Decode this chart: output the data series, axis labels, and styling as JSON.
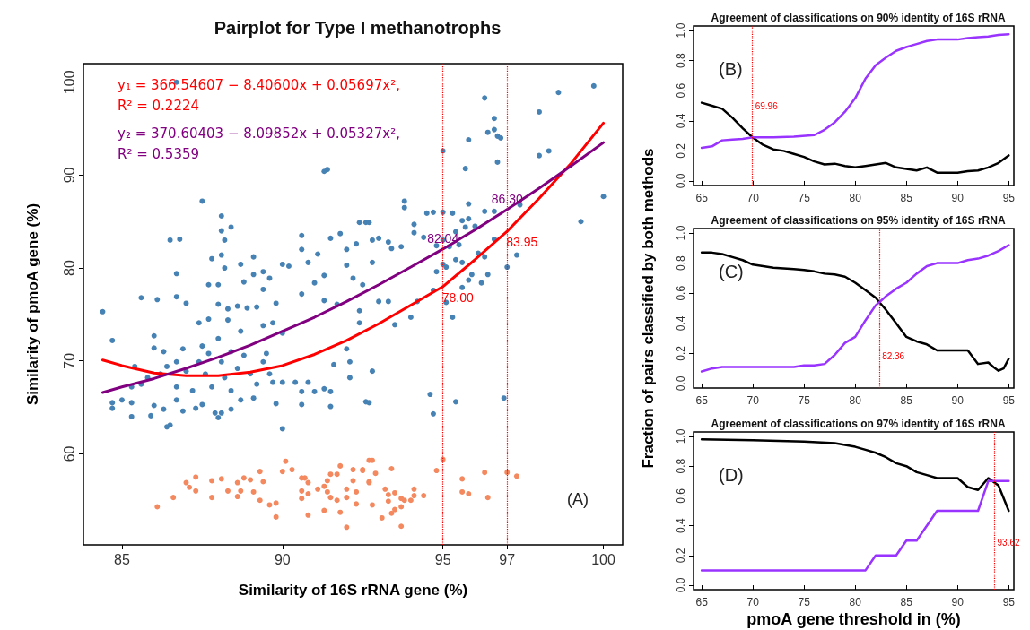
{
  "chart_data": [
    {
      "type": "scatter",
      "title": "Pairplot for Type I methanotrophs",
      "xlabel": "Similarity of 16S rRNA gene (%)",
      "ylabel": "Similarity of pmoA gene (%)",
      "xlim": [
        83.8,
        100.6
      ],
      "ylim": [
        50.2,
        102
      ],
      "xticks": [
        85,
        90,
        95,
        97,
        100
      ],
      "yticks": [
        60,
        70,
        80,
        90,
        100
      ],
      "legend": "top left",
      "annotations": [
        "(A)"
      ],
      "ref_lines": [
        {
          "axis": "x",
          "value": 95,
          "color": "#ff0000",
          "line_style": "dotted"
        },
        {
          "axis": "x",
          "value": 97,
          "color": "#ff0000",
          "line_style": "dotted"
        }
      ],
      "series": [
        {
          "marker": "circle",
          "color": "#4682b4",
          "x": [
            86.7,
            84.4,
            84.7,
            85.6,
            86.1,
            86.7,
            87.0,
            86.5,
            86.8,
            86.7,
            87.5,
            88.1,
            88.1,
            88.4,
            88.2,
            88.1,
            87.8,
            88.2,
            88.7,
            89.1,
            89.1,
            89.4,
            89.6,
            87.7,
            88.0,
            88.8,
            89.4,
            88.0,
            88.3,
            88.6,
            88.9,
            89.2,
            89.8,
            87.4,
            87.7,
            88.3,
            88.7,
            89.4,
            89.7,
            90.0,
            88.0,
            87.5,
            86.0,
            86.0,
            86.3,
            86.9,
            86.4,
            85.4,
            85.8,
            85.3,
            85.0,
            84.7,
            84.7,
            85.3,
            85.3,
            85.9,
            86.0,
            86.4,
            86.5,
            86.3,
            86.7,
            86.9,
            87.3,
            87.5,
            87.9,
            88.0,
            88.1,
            88.4,
            88.7,
            89.1,
            89.8,
            90.0,
            90.0,
            89.7,
            90.4,
            90.8,
            90.6,
            91.0,
            91.3,
            91.5,
            91.5,
            90.6,
            87.0,
            87.4,
            87.6,
            87.8,
            88.1,
            88.2,
            88.4,
            88.6,
            88.8,
            89.0,
            89.2,
            89.4,
            89.6,
            89.5,
            87.2,
            86.7,
            86.2,
            85.6,
            88.4,
            87.7,
            86.7,
            90.0,
            90.2,
            90.6,
            90.6,
            90.8,
            91.1,
            91.3,
            91.5,
            91.8,
            92.0,
            92.4,
            92.6,
            92.3,
            92.8,
            92.0,
            92.2,
            92.5,
            92.8,
            90.6,
            91.3,
            91.7,
            92.0,
            92.1,
            92.1,
            92.4,
            92.4,
            91.6,
            92.8,
            92.6,
            91.3,
            91.4,
            91.0,
            93.8,
            93.8,
            92.7,
            93.0,
            93.3,
            93.4,
            93.7,
            94.1,
            94.5,
            94.7,
            95.0,
            95.3,
            95.6,
            95.8,
            95.7,
            96.0,
            94.1,
            94.4,
            94.8,
            95.0,
            95.2,
            95.4,
            95.5,
            95.0,
            94.8,
            95.1,
            95.4,
            95.6,
            95.9,
            95.8,
            96.2,
            96.4,
            96.1,
            96.3,
            96.6,
            96.3,
            96.6,
            97.0,
            97.3,
            97.4,
            96.7,
            95.8,
            95.7,
            96.3,
            96.6,
            96.4,
            96.6,
            96.7,
            96.8,
            95.0,
            95.8,
            98.0,
            98.6,
            99.7,
            98.0,
            98.3,
            99.3,
            100.0,
            94.0,
            94.2,
            93.5,
            93.0,
            93.3,
            94.7,
            95.1,
            95.3,
            95.6,
            92.7,
            94.6,
            94.7,
            95.4,
            96.9
          ],
          "values": [
            100,
            75.3,
            72.2,
            76.8,
            76.6,
            76.9,
            76.2,
            83.0,
            83.1,
            79.4,
            87.2,
            85.6,
            84.0,
            84.4,
            83.0,
            81.4,
            81.0,
            80.0,
            80.4,
            81.2,
            79.3,
            79.6,
            78.9,
            78.2,
            78.2,
            78.5,
            77.7,
            76.1,
            75.6,
            75.9,
            75.7,
            75.8,
            76.2,
            74.1,
            74.5,
            74.4,
            73.2,
            73.8,
            74.1,
            73.0,
            72.4,
            71.6,
            72.7,
            71.4,
            71.0,
            71.3,
            69.4,
            69.4,
            68.2,
            67.2,
            65.8,
            65.5,
            64.9,
            65.5,
            64.0,
            64.1,
            65.2,
            62.9,
            63.1,
            64.8,
            65.8,
            64.6,
            64.9,
            65.3,
            64.4,
            63.9,
            64.4,
            64.8,
            65.8,
            66.0,
            65.4,
            62.7,
            67.7,
            67.7,
            67.7,
            67.7,
            66.7,
            66.7,
            67.0,
            66.7,
            65.1,
            65.3,
            68.9,
            69.9,
            68.6,
            67.2,
            69.9,
            68.2,
            66.8,
            69.2,
            70.6,
            68.6,
            67.5,
            69.9,
            68.6,
            70.8,
            66.8,
            67.2,
            68.6,
            67.5,
            71.0,
            70.8,
            69.9,
            80.4,
            80.2,
            83.5,
            82.0,
            80.6,
            81.5,
            79.2,
            83.2,
            83.7,
            82.0,
            84.9,
            84.9,
            82.6,
            83.0,
            80.3,
            78.9,
            78.2,
            80.6,
            77.2,
            76.5,
            76.1,
            71.3,
            69.9,
            68.2,
            74.1,
            75.4,
            69.6,
            68.9,
            65.6,
            90.4,
            90.6,
            78.4,
            87.2,
            86.5,
            84.9,
            83.2,
            82.8,
            82.1,
            82.3,
            84.7,
            85.9,
            86.0,
            86.0,
            85.9,
            85.1,
            85.3,
            84.4,
            84.5,
            83.8,
            83.3,
            82.4,
            83.0,
            82.3,
            83.9,
            82.5,
            80.4,
            79.6,
            80.1,
            80.9,
            80.6,
            79.3,
            78.7,
            78.4,
            79.3,
            81.6,
            81.2,
            83.1,
            86.1,
            86.1,
            80.1,
            81.4,
            86.8,
            91.4,
            93.8,
            90.7,
            98.3,
            96.1,
            94.6,
            94.9,
            94.2,
            94.0,
            92.6,
            86.9,
            96.8,
            98.9,
            99.6,
            92.1,
            92.6,
            85.0,
            87.7,
            74.7,
            76.4,
            73.9,
            76.4,
            76.4,
            77.6,
            76.3,
            74.7,
            77.9,
            65.5,
            66.4,
            64.3,
            65.6,
            66.0
          ]
        },
        {
          "marker": "circle",
          "color": "#f4895f",
          "x": [
            86.1,
            86.6,
            87.0,
            87.1,
            87.3,
            87.3,
            87.8,
            88.1,
            87.8,
            88.3,
            88.6,
            88.7,
            88.6,
            88.8,
            89.0,
            89.1,
            89.3,
            89.4,
            89.3,
            89.6,
            89.8,
            89.8,
            90.0,
            90.1,
            90.3,
            90.6,
            90.7,
            90.8,
            90.6,
            90.8,
            90.6,
            90.8,
            91.1,
            91.3,
            91.4,
            91.5,
            91.7,
            91.8,
            91.4,
            91.5,
            91.7,
            91.3,
            91.8,
            92.0,
            92.0,
            92.0,
            92.2,
            92.2,
            92.3,
            92.3,
            92.5,
            92.7,
            92.8,
            92.7,
            92.5,
            92.9,
            92.7,
            93.4,
            92.8,
            93.1,
            93.2,
            93.3,
            93.3,
            93.4,
            93.5,
            93.7,
            93.5,
            93.7,
            93.8,
            94.0,
            94.1,
            94.1,
            94.4,
            93.7,
            94.8,
            95.0,
            95.6,
            95.6,
            95.8,
            96.3,
            96.4,
            97.0,
            97.3
          ],
          "values": [
            54.3,
            55.3,
            56.9,
            56.4,
            56.0,
            57.5,
            57.1,
            57.3,
            55.3,
            56.0,
            56.9,
            56.0,
            55.4,
            57.4,
            57.2,
            55.9,
            58.1,
            57.0,
            55.0,
            54.5,
            54.7,
            53.2,
            58.1,
            59.2,
            58.3,
            57.4,
            57.4,
            56.9,
            56.0,
            55.7,
            55.2,
            53.4,
            56.2,
            56.5,
            57.1,
            57.8,
            57.8,
            58.7,
            55.9,
            55.3,
            55.0,
            53.9,
            53.7,
            56.2,
            55.3,
            52.1,
            57.1,
            58.3,
            55.9,
            54.6,
            58.3,
            59.3,
            59.3,
            57.0,
            58.2,
            57.9,
            56.9,
            58.4,
            54.5,
            53.1,
            56.2,
            55.6,
            54.9,
            53.6,
            55.8,
            55.2,
            54.0,
            54.3,
            55.0,
            55.0,
            55.5,
            56.2,
            55.5,
            52.2,
            58.2,
            59.4,
            57.3,
            55.9,
            55.7,
            58.0,
            55.3,
            58.0,
            57.6
          ]
        },
        {
          "type": "line",
          "marker": "none",
          "name": "y₁ = 366.54607 − 8.40600x + 0.05697x²,\nR² = 0.2224",
          "color": "#ff0000",
          "x": [
            84.4,
            85,
            86,
            87,
            88,
            89,
            90,
            91,
            92,
            93,
            94,
            95,
            96,
            97,
            98,
            99,
            100
          ],
          "values": [
            70.1,
            69.5,
            68.7,
            68.4,
            68.4,
            68.8,
            69.5,
            70.7,
            72.2,
            74.0,
            76.0,
            78.0,
            80.9,
            83.95,
            87.5,
            91.3,
            95.6
          ],
          "value_labels": [
            null,
            null,
            null,
            null,
            null,
            null,
            null,
            null,
            null,
            null,
            null,
            "78.00",
            null,
            "83.95",
            null,
            null,
            null
          ]
        },
        {
          "type": "line",
          "marker": "none",
          "name": "y₂ = 370.60403 − 8.09852x + 0.05327x²,\nR² = 0.5359",
          "color": "#800080",
          "x": [
            84.4,
            85,
            86,
            87,
            88,
            89,
            90,
            91,
            92,
            93,
            94,
            95,
            96,
            97,
            98,
            99,
            100
          ],
          "values": [
            66.6,
            67.2,
            68.1,
            69.2,
            70.4,
            71.7,
            73.2,
            74.7,
            76.4,
            78.2,
            80.1,
            82.04,
            84.1,
            86.3,
            88.6,
            91.0,
            93.5
          ],
          "value_labels": [
            null,
            null,
            null,
            null,
            null,
            null,
            null,
            null,
            null,
            null,
            null,
            "82.04",
            null,
            "86.30",
            null,
            null,
            null
          ]
        }
      ]
    },
    {
      "type": "line",
      "title": "Agreement of classifications on 90% identity of 16S rRNA",
      "xlim": [
        64.2,
        95.5
      ],
      "ylim": [
        -0.03,
        1.03
      ],
      "xticks": [
        65,
        70,
        75,
        80,
        85,
        90,
        95
      ],
      "yticks": [
        {
          "value": 0,
          "label": "0.0"
        },
        {
          "value": 0.2,
          "label": "0.2"
        },
        {
          "value": 0.4,
          "label": "0.4"
        },
        {
          "value": 0.6,
          "label": "0.6"
        },
        {
          "value": 0.8,
          "label": "0.8"
        },
        {
          "value": 1,
          "label": "1.0"
        }
      ],
      "marker": "none",
      "annotations": [
        "(B)"
      ],
      "ref_lines": [
        {
          "axis": "x",
          "value": 69.96,
          "label": "69.96",
          "color": "#ff0000",
          "line_style": "dotted"
        }
      ],
      "series": [
        {
          "color": "#000000",
          "x": [
            65,
            66,
            67,
            68,
            69,
            69.96,
            71,
            72,
            73,
            74,
            75,
            76,
            77,
            78,
            79,
            80,
            81,
            82,
            83,
            84,
            85,
            86,
            87,
            88,
            89,
            90,
            91,
            92,
            93,
            94,
            95
          ],
          "values": [
            0.52,
            0.5,
            0.48,
            0.42,
            0.35,
            0.29,
            0.24,
            0.21,
            0.2,
            0.18,
            0.16,
            0.13,
            0.11,
            0.115,
            0.1,
            0.09,
            0.1,
            0.11,
            0.12,
            0.09,
            0.08,
            0.07,
            0.09,
            0.055,
            0.055,
            0.055,
            0.065,
            0.07,
            0.09,
            0.12,
            0.17
          ]
        },
        {
          "color": "#9933ff",
          "x": [
            65,
            66,
            67,
            68,
            69,
            70,
            72,
            74,
            76,
            77,
            78,
            79,
            80,
            81,
            82,
            83,
            84,
            85,
            86,
            87,
            88,
            89,
            90,
            91,
            92,
            93,
            94,
            95
          ],
          "values": [
            0.22,
            0.23,
            0.27,
            0.275,
            0.28,
            0.29,
            0.29,
            0.295,
            0.305,
            0.34,
            0.39,
            0.46,
            0.55,
            0.68,
            0.77,
            0.82,
            0.865,
            0.89,
            0.91,
            0.93,
            0.94,
            0.94,
            0.94,
            0.95,
            0.955,
            0.96,
            0.97,
            0.975
          ]
        }
      ]
    },
    {
      "type": "line",
      "title": "Agreement of classifications on 95% identity of 16S rRNA",
      "ylabel": "Fraction of pairs classified by both methods",
      "xlim": [
        64.2,
        95.5
      ],
      "ylim": [
        -0.03,
        1.03
      ],
      "xticks": [
        65,
        70,
        75,
        80,
        85,
        90,
        95
      ],
      "yticks": [
        {
          "value": 0,
          "label": "0.0"
        },
        {
          "value": 0.2,
          "label": "0.2"
        },
        {
          "value": 0.4,
          "label": "0.4"
        },
        {
          "value": 0.6,
          "label": "0.6"
        },
        {
          "value": 0.8,
          "label": "0.8"
        },
        {
          "value": 1,
          "label": "1.0"
        }
      ],
      "marker": "none",
      "annotations": [
        "(C)"
      ],
      "ref_lines": [
        {
          "axis": "x",
          "value": 82.36,
          "label": "82.36",
          "color": "#ff0000",
          "line_style": "dotted"
        }
      ],
      "series": [
        {
          "color": "#000000",
          "x": [
            65,
            66,
            67,
            68,
            69,
            70,
            71,
            72,
            73,
            74,
            75,
            76,
            77,
            78,
            79,
            80,
            81,
            82,
            82.36,
            83,
            84,
            85,
            86,
            87,
            88,
            89,
            90,
            91,
            92,
            93,
            93.5,
            94,
            94.5,
            95
          ],
          "values": [
            0.87,
            0.87,
            0.86,
            0.84,
            0.82,
            0.79,
            0.78,
            0.77,
            0.765,
            0.76,
            0.755,
            0.745,
            0.73,
            0.725,
            0.71,
            0.67,
            0.62,
            0.57,
            0.54,
            0.49,
            0.4,
            0.31,
            0.28,
            0.26,
            0.22,
            0.22,
            0.22,
            0.22,
            0.13,
            0.14,
            0.11,
            0.085,
            0.1,
            0.165
          ]
        },
        {
          "color": "#9933ff",
          "x": [
            65,
            66,
            67,
            70,
            73,
            74,
            75,
            76,
            77,
            78,
            79,
            80,
            81,
            82,
            82.36,
            83,
            84,
            85,
            86,
            87,
            88,
            89,
            90,
            91,
            92,
            93,
            94,
            95
          ],
          "values": [
            0.08,
            0.1,
            0.11,
            0.11,
            0.11,
            0.11,
            0.12,
            0.12,
            0.13,
            0.19,
            0.27,
            0.31,
            0.42,
            0.52,
            0.54,
            0.58,
            0.63,
            0.67,
            0.73,
            0.78,
            0.8,
            0.8,
            0.8,
            0.82,
            0.83,
            0.85,
            0.88,
            0.92
          ]
        }
      ]
    },
    {
      "type": "line",
      "title": "Agreement of classifications on 97% identity of 16S rRNA",
      "xlabel": "pmoA gene threshold in (%)",
      "xlim": [
        64.2,
        95.5
      ],
      "ylim": [
        -0.03,
        1.03
      ],
      "xticks": [
        65,
        70,
        75,
        80,
        85,
        90,
        95
      ],
      "yticks": [
        {
          "value": 0,
          "label": "0.0"
        },
        {
          "value": 0.2,
          "label": "0.2"
        },
        {
          "value": 0.4,
          "label": "0.4"
        },
        {
          "value": 0.6,
          "label": "0.6"
        },
        {
          "value": 0.8,
          "label": "0.8"
        },
        {
          "value": 1,
          "label": "1.0"
        }
      ],
      "marker": "none",
      "annotations": [
        "(D)"
      ],
      "ref_lines": [
        {
          "axis": "x",
          "value": 93.62,
          "label": "93.62",
          "color": "#ff0000",
          "line_style": "dotted"
        }
      ],
      "series": [
        {
          "color": "#000000",
          "x": [
            65,
            70,
            75,
            78,
            80,
            81,
            82,
            83,
            84,
            85,
            86,
            87,
            88,
            89,
            90,
            91,
            92,
            93,
            94,
            95
          ],
          "values": [
            0.98,
            0.975,
            0.965,
            0.955,
            0.93,
            0.91,
            0.89,
            0.86,
            0.82,
            0.8,
            0.76,
            0.74,
            0.72,
            0.72,
            0.72,
            0.66,
            0.64,
            0.72,
            0.67,
            0.5
          ]
        },
        {
          "color": "#9933ff",
          "x": [
            65,
            81,
            82,
            84,
            85,
            86,
            88,
            92,
            93,
            95
          ],
          "values": [
            0.1,
            0.1,
            0.2,
            0.2,
            0.3,
            0.3,
            0.5,
            0.5,
            0.7,
            0.7
          ]
        }
      ]
    }
  ]
}
